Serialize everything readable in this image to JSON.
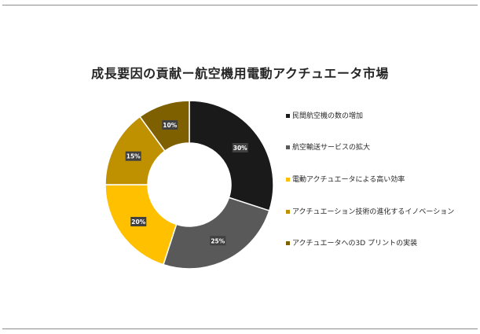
{
  "chart_data": {
    "type": "pie",
    "variant": "donut",
    "title": "成長要因の貢献ー航空機用電動アクチュエータ市場",
    "legend_position": "right",
    "slices": [
      {
        "label": "民間航空機の数の増加",
        "value": 30,
        "value_label": "30%",
        "color": "#1a1a1a"
      },
      {
        "label": "航空輸送サービスの拡大",
        "value": 25,
        "value_label": "25%",
        "color": "#595959"
      },
      {
        "label": "電動アクチュエータによる高い効率",
        "value": 20,
        "value_label": "20%",
        "color": "#ffc000"
      },
      {
        "label": "アクチュエーション技術の進化するイノベーション",
        "value": 15,
        "value_label": "15%",
        "color": "#bf9000"
      },
      {
        "label": "アクチュエータへの3D プリントの実装",
        "value": 10,
        "value_label": "10%",
        "color": "#7f6000"
      }
    ]
  }
}
